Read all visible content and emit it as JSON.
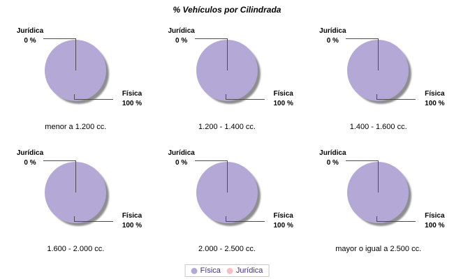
{
  "title": "% Vehículos por Cilindrada",
  "pie_labels": {
    "juridica_name": "Jurídica",
    "juridica_pct": "0 %",
    "fisica_name": "Física",
    "fisica_pct": "100 %"
  },
  "captions": [
    "menor a 1.200 cc.",
    "1.200 - 1.400 cc.",
    "1.400 - 1.600 cc.",
    "1.600 - 2.000 cc.",
    "2.000 - 2.500 cc.",
    "mayor o igual a 2.500 cc."
  ],
  "legend": {
    "items": [
      {
        "label": "Física",
        "color": "#b3a8d6"
      },
      {
        "label": "Jurídica",
        "color": "#f6bfc7"
      }
    ]
  },
  "colors": {
    "fisica": "#b3a8d6",
    "juridica": "#f6bfc7",
    "shadow": "#8e8e8e",
    "connector": "#4d4d4d",
    "legend_text": "#43307c",
    "legend_border": "#c9c9c9",
    "caption_text": "#000000",
    "background": "#ffffff"
  },
  "chart_data": [
    {
      "type": "pie",
      "title": "menor a 1.200 cc.",
      "labels": [
        "Física",
        "Jurídica"
      ],
      "values": [
        100,
        0
      ],
      "colors": [
        "#b3a8d6",
        "#f6bfc7"
      ],
      "legend_position": "bottom"
    },
    {
      "type": "pie",
      "title": "1.200 - 1.400 cc.",
      "labels": [
        "Física",
        "Jurídica"
      ],
      "values": [
        100,
        0
      ],
      "colors": [
        "#b3a8d6",
        "#f6bfc7"
      ],
      "legend_position": "bottom"
    },
    {
      "type": "pie",
      "title": "1.400 - 1.600 cc.",
      "labels": [
        "Física",
        "Jurídica"
      ],
      "values": [
        100,
        0
      ],
      "colors": [
        "#b3a8d6",
        "#f6bfc7"
      ],
      "legend_position": "bottom"
    },
    {
      "type": "pie",
      "title": "1.600 - 2.000 cc.",
      "labels": [
        "Física",
        "Jurídica"
      ],
      "values": [
        100,
        0
      ],
      "colors": [
        "#b3a8d6",
        "#f6bfc7"
      ],
      "legend_position": "bottom"
    },
    {
      "type": "pie",
      "title": "2.000 - 2.500 cc.",
      "labels": [
        "Física",
        "Jurídica"
      ],
      "values": [
        100,
        0
      ],
      "colors": [
        "#b3a8d6",
        "#f6bfc7"
      ],
      "legend_position": "bottom"
    },
    {
      "type": "pie",
      "title": "mayor o igual a 2.500 cc.",
      "labels": [
        "Física",
        "Jurídica"
      ],
      "values": [
        100,
        0
      ],
      "colors": [
        "#b3a8d6",
        "#f6bfc7"
      ],
      "legend_position": "bottom"
    }
  ]
}
